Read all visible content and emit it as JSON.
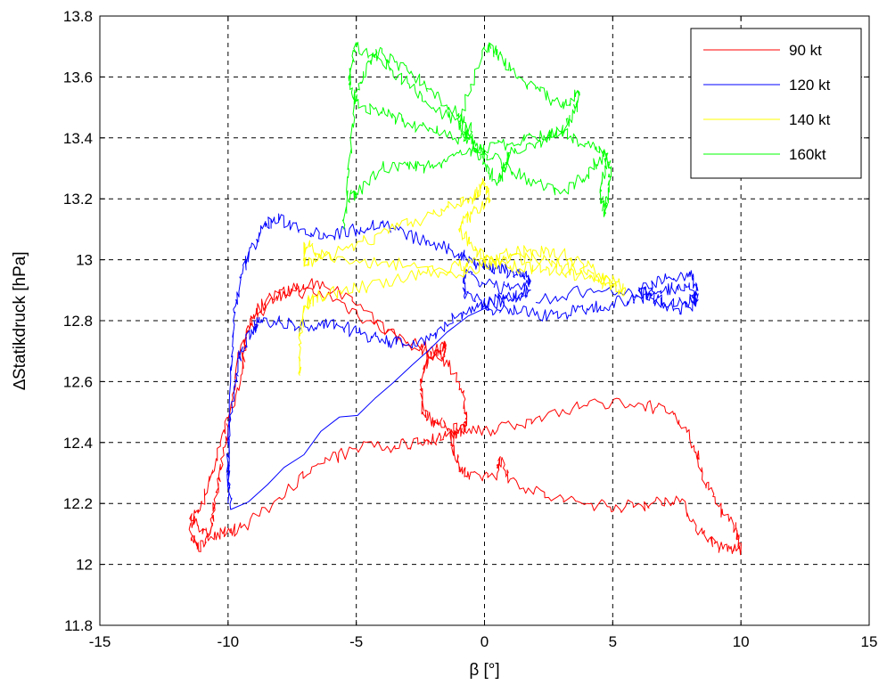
{
  "chart_data": {
    "type": "line",
    "xlabel": "β [°]",
    "ylabel": "∆Statikdruck [hPa]",
    "xlim": [
      -15,
      15
    ],
    "ylim": [
      11.8,
      13.8
    ],
    "xticks": [
      -15,
      -10,
      -5,
      0,
      5,
      10,
      15
    ],
    "yticks": [
      11.8,
      12,
      12.2,
      12.4,
      12.6,
      12.8,
      13,
      13.2,
      13.4,
      13.6,
      13.8
    ],
    "xtick_labels": [
      "-15",
      "-10",
      "-5",
      "0",
      "5",
      "10",
      "15"
    ],
    "ytick_labels": [
      "11.8",
      "12",
      "12.2",
      "12.4",
      "12.6",
      "12.8",
      "13",
      "13.2",
      "13.4",
      "13.6",
      "13.8"
    ],
    "grid": true,
    "legend_position": "top-right",
    "series": [
      {
        "name": "90 kt",
        "color": "#ff0000",
        "x": [
          -1.0,
          -1.5,
          -2.0,
          -2.5,
          -3.5,
          -5.0,
          -6.5,
          -8.0,
          -9.5,
          -10.2,
          -11.0,
          -11.5,
          -11.0,
          -10.3,
          -9.5,
          -9.3,
          -9.0,
          -8.5,
          -7.5,
          -6.0,
          -4.5,
          -3.0,
          -1.8,
          -1.0,
          -0.7,
          -0.8,
          -1.3,
          -1.0,
          -0.6,
          0.5,
          0.6,
          1.0,
          2.5,
          4.0,
          5.5,
          6.5,
          7.5,
          8.5,
          9.3,
          10.0,
          9.8,
          9.0,
          8.5,
          8.0,
          7.3,
          6.0,
          4.0,
          2.0,
          0.5,
          -0.8,
          -1.5,
          -2.0,
          -2.4,
          -2.5,
          -2.2,
          -1.8,
          -1.5,
          -1.6,
          -3.0,
          -5.0,
          -6.5,
          -7.5,
          -8.5,
          -9.5,
          -10.0,
          -10.3,
          -10.5,
          -10.7,
          -11.2,
          -11.5
        ],
        "y": [
          12.43,
          12.42,
          12.41,
          12.4,
          12.39,
          12.38,
          12.33,
          12.22,
          12.12,
          12.1,
          12.1,
          12.15,
          12.2,
          12.4,
          12.62,
          12.75,
          12.82,
          12.87,
          12.9,
          12.88,
          12.8,
          12.73,
          12.7,
          12.6,
          12.5,
          12.45,
          12.4,
          12.33,
          12.28,
          12.3,
          12.35,
          12.28,
          12.22,
          12.2,
          12.19,
          12.2,
          12.22,
          12.1,
          12.05,
          12.05,
          12.12,
          12.2,
          12.3,
          12.42,
          12.5,
          12.53,
          12.52,
          12.48,
          12.44,
          12.44,
          12.45,
          12.47,
          12.5,
          12.6,
          12.68,
          12.7,
          12.72,
          12.68,
          12.72,
          12.85,
          12.93,
          12.9,
          12.85,
          12.72,
          12.45,
          12.32,
          12.2,
          12.1,
          12.05,
          12.12
        ]
      },
      {
        "name": "120 kt",
        "color": "#0000ff",
        "x": [
          -10.0,
          -9.9,
          -9.8,
          -9.5,
          -9.0,
          -8.5,
          -8.0,
          -7.0,
          -6.0,
          -5.0,
          -4.0,
          -3.0,
          -2.0,
          -1.0,
          -0.5,
          0.0,
          0.5,
          1.0,
          1.5,
          1.8,
          1.0,
          0.0,
          -0.8,
          -0.8,
          0.0,
          1.0,
          1.8,
          1.0,
          0.0,
          -1.0,
          -2.0,
          -3.0,
          -4.0,
          -5.0,
          -6.0,
          -7.0,
          -8.0,
          -8.7,
          -9.0,
          -9.5,
          -9.7,
          -10.0,
          -10.0,
          -9.9,
          0.0,
          1.0,
          2.0,
          3.0,
          4.0,
          5.0,
          6.0,
          7.0,
          7.8,
          8.3,
          8.2,
          7.5,
          6.5,
          6.0,
          7.0,
          8.0,
          8.3,
          8.0,
          7.0,
          6.0,
          4.0,
          2.0
        ],
        "y": [
          12.2,
          12.6,
          12.8,
          12.95,
          13.05,
          13.12,
          13.13,
          13.1,
          13.08,
          13.1,
          13.12,
          13.08,
          13.05,
          13.02,
          13.0,
          12.98,
          12.97,
          12.96,
          12.95,
          12.93,
          12.9,
          12.92,
          12.95,
          12.88,
          12.86,
          12.88,
          12.9,
          12.87,
          12.85,
          12.82,
          12.75,
          12.72,
          12.74,
          12.76,
          12.8,
          12.78,
          12.8,
          12.8,
          12.78,
          12.7,
          12.6,
          12.4,
          12.3,
          12.18,
          12.84,
          12.84,
          12.82,
          12.82,
          12.84,
          12.86,
          12.88,
          12.9,
          12.92,
          12.88,
          12.85,
          12.84,
          12.88,
          12.9,
          12.93,
          12.96,
          12.9,
          12.86,
          12.86,
          12.88,
          12.9,
          12.86
        ]
      },
      {
        "name": "140 kt",
        "color": "#ffff00",
        "x": [
          -7.2,
          -7.2,
          -7.0,
          -6.5,
          -5.5,
          -4.0,
          -2.5,
          -1.0,
          0.0,
          1.0,
          2.0,
          3.0,
          4.0,
          5.0,
          5.5,
          5.0,
          4.0,
          3.0,
          2.0,
          1.0,
          0.0,
          -1.0,
          -3.0,
          -5.0,
          -6.5,
          -7.0,
          -7.0,
          -6.5,
          -5.0,
          -3.5,
          -2.0,
          -1.0,
          -0.5,
          -0.3,
          0.0,
          0.2,
          -0.5,
          -1.0,
          -0.5,
          0.0,
          1.0,
          2.0,
          3.0,
          4.0,
          5.0
        ],
        "y": [
          12.62,
          12.75,
          12.85,
          12.88,
          12.9,
          12.92,
          12.95,
          12.98,
          13.0,
          13.02,
          13.03,
          13.02,
          12.98,
          12.93,
          12.9,
          12.92,
          12.95,
          12.98,
          13.0,
          13.0,
          12.99,
          12.95,
          12.98,
          13.0,
          13.02,
          13.05,
          12.98,
          13.0,
          13.05,
          13.1,
          13.15,
          13.18,
          13.2,
          13.22,
          13.25,
          13.2,
          13.15,
          13.1,
          13.05,
          13.0,
          12.98,
          12.97,
          12.96,
          12.94,
          12.92
        ]
      },
      {
        "name": "160kt",
        "color": "#00ff00",
        "x": [
          -5.5,
          -5.3,
          -5.0,
          -4.5,
          -4.0,
          -3.0,
          -2.0,
          -1.0,
          -0.5,
          -1.0,
          -2.0,
          -3.0,
          -4.0,
          -5.0,
          -5.3,
          -5.0,
          -4.0,
          -3.0,
          -2.0,
          -1.0,
          0.0,
          0.5,
          1.0,
          2.0,
          3.0,
          3.7,
          3.5,
          3.0,
          2.0,
          1.0,
          0.8,
          0.5,
          0.0,
          -0.5,
          -1.0,
          -0.5,
          0.0,
          1.0,
          2.0,
          3.0,
          4.0,
          4.7,
          4.9,
          4.8,
          4.7,
          4.5,
          4.8,
          4.0,
          3.0,
          2.0,
          1.0,
          0.0,
          -1.0,
          -2.0,
          -3.0,
          -4.0,
          -5.0,
          -5.3
        ],
        "y": [
          13.1,
          13.3,
          13.55,
          13.65,
          13.68,
          13.62,
          13.55,
          13.48,
          13.42,
          13.4,
          13.42,
          13.45,
          13.48,
          13.52,
          13.6,
          13.7,
          13.65,
          13.58,
          13.5,
          13.45,
          13.7,
          13.68,
          13.62,
          13.56,
          13.5,
          13.55,
          13.48,
          13.42,
          13.38,
          13.35,
          13.3,
          13.25,
          13.32,
          13.38,
          13.45,
          13.4,
          13.35,
          13.3,
          13.25,
          13.22,
          13.28,
          13.35,
          13.3,
          13.2,
          13.15,
          13.22,
          13.35,
          13.38,
          13.42,
          13.4,
          13.38,
          13.36,
          13.35,
          13.3,
          13.32,
          13.3,
          13.22,
          13.2
        ]
      }
    ]
  }
}
